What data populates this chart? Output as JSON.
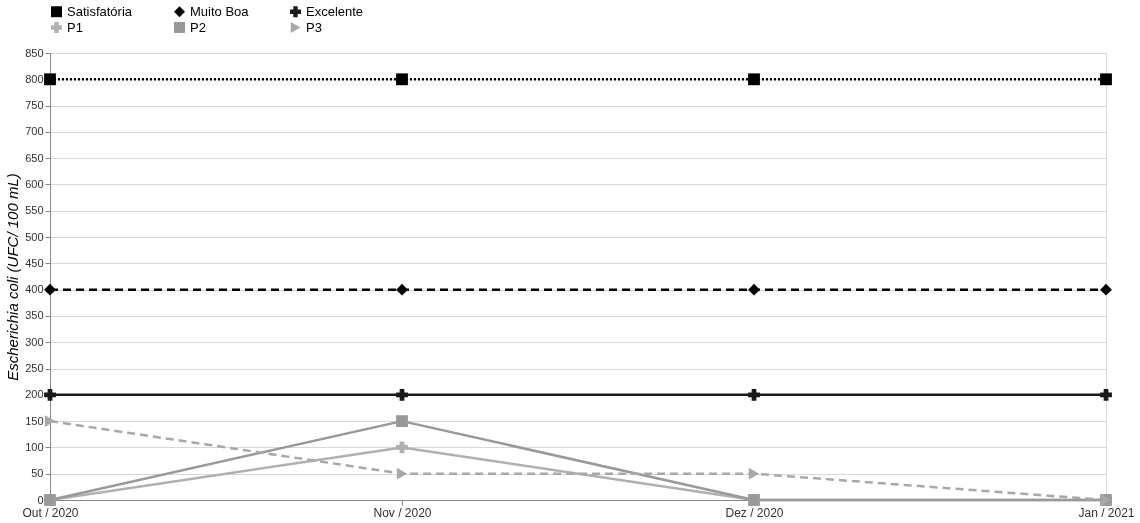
{
  "chart_data": {
    "type": "line",
    "ylabel": "Escherichia coli (UFC/ 100 mL)",
    "categories": [
      "Out / 2020",
      "Nov / 2020",
      "Dez / 2020",
      "Jan / 2021"
    ],
    "series": [
      {
        "name": "Satisfatória",
        "color": "#000000",
        "values": [
          800,
          800,
          800,
          800
        ],
        "marker": "square",
        "line_style": "dotted"
      },
      {
        "name": "Muito Boa",
        "color": "#000000",
        "values": [
          400,
          400,
          400,
          400
        ],
        "marker": "diamond",
        "line_style": "dashed"
      },
      {
        "name": "Excelente",
        "color": "#1a1a1a",
        "values": [
          200,
          200,
          200,
          200
        ],
        "marker": "cross",
        "line_style": "solid"
      },
      {
        "name": "P1",
        "color": "#b0b0b0",
        "values": [
          0,
          100,
          0,
          0
        ],
        "marker": "cross",
        "line_style": "solid"
      },
      {
        "name": "P2",
        "color": "#999999",
        "values": [
          0,
          150,
          0,
          0
        ],
        "marker": "square",
        "line_style": "solid"
      },
      {
        "name": "P3",
        "color": "#a8a8a8",
        "values": [
          150,
          50,
          50,
          0
        ],
        "marker": "triangle",
        "line_style": "dashed"
      }
    ],
    "ylim": [
      0,
      850
    ],
    "yticks": [
      0,
      50,
      100,
      150,
      200,
      250,
      300,
      350,
      400,
      450,
      500,
      550,
      600,
      650,
      700,
      750,
      800,
      850
    ],
    "grid": "y",
    "legend": "top"
  }
}
